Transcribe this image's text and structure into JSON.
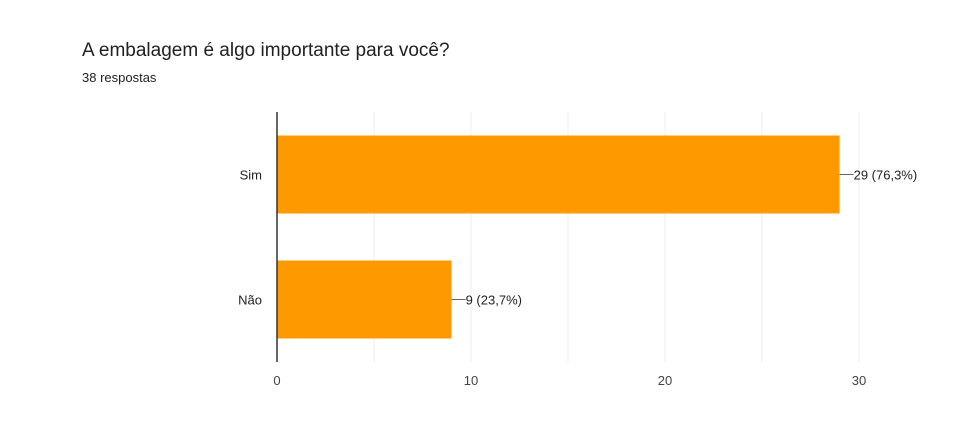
{
  "question": {
    "title": "A embalagem é algo importante para você?",
    "responses": "38 respostas"
  },
  "chart_data": {
    "type": "bar",
    "orientation": "horizontal",
    "categories": [
      "Sim",
      "Não"
    ],
    "values": [
      29,
      9
    ],
    "data_labels": [
      "29 (76,3%)",
      "9 (23,7%)"
    ],
    "xlim": [
      0,
      30
    ],
    "xticks": [
      0,
      10,
      20,
      30
    ],
    "grid": true,
    "bar_color": "#ff9900"
  }
}
